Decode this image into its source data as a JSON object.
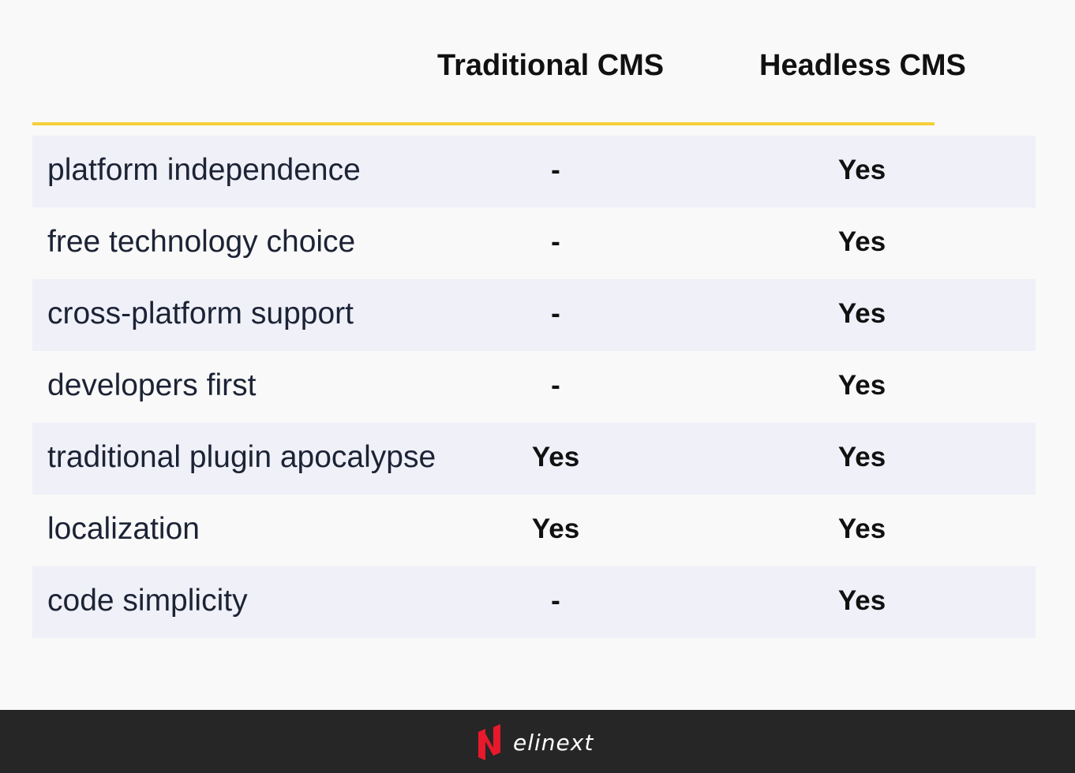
{
  "columns": {
    "traditional": "Traditional CMS",
    "headless": "Headless CMS"
  },
  "rows": [
    {
      "label": "platform independence",
      "traditional": "-",
      "headless": "Yes"
    },
    {
      "label": "free technology choice",
      "traditional": "-",
      "headless": "Yes"
    },
    {
      "label": "cross-platform support",
      "traditional": "-",
      "headless": "Yes"
    },
    {
      "label": "developers first",
      "traditional": "-",
      "headless": "Yes"
    },
    {
      "label": "traditional plugin apocalypse",
      "traditional": "Yes",
      "headless": "Yes"
    },
    {
      "label": "localization",
      "traditional": "Yes",
      "headless": "Yes"
    },
    {
      "label": "code simplicity",
      "traditional": "-",
      "headless": "Yes"
    }
  ],
  "footer": {
    "logo_text": "elinext",
    "logo_icon": "elinext-logo-icon"
  },
  "colors": {
    "accent_line": "#f5cf3b",
    "row_shade": "#eff0f8",
    "footer_bg": "#262626",
    "logo_red": "#e8192c"
  }
}
